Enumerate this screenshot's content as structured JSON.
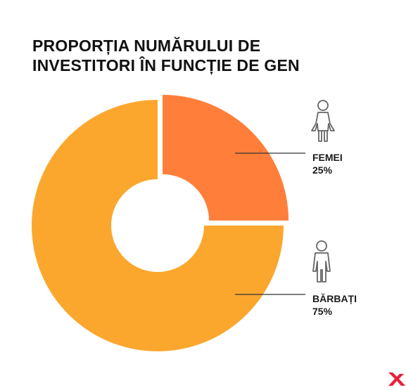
{
  "title": {
    "line1": "PROPORȚIA NUMĂRULUI DE",
    "line2": "INVESTITORI ÎN FUNCȚIE DE GEN"
  },
  "colors": {
    "femei": "#FF7F3A",
    "barbati": "#FBA72E",
    "text": "#111111",
    "icon": "#666666",
    "logo": "#E8203A"
  },
  "chart_data": {
    "type": "pie",
    "variant": "donut",
    "slices": [
      {
        "label": "FEMEI",
        "value": 25,
        "display": "25%",
        "color": "#FF7F3A",
        "icon": "female-person-icon",
        "exploded": true
      },
      {
        "label": "BĂRBAȚI",
        "value": 75,
        "display": "75%",
        "color": "#FBA72E",
        "icon": "male-person-icon",
        "exploded": false
      }
    ],
    "title": "PROPORȚIA NUMĂRULUI DE INVESTITORI ÎN FUNCȚIE DE GEN",
    "legend": "right"
  },
  "logo": {
    "icon": "brand-x-logo-icon"
  }
}
